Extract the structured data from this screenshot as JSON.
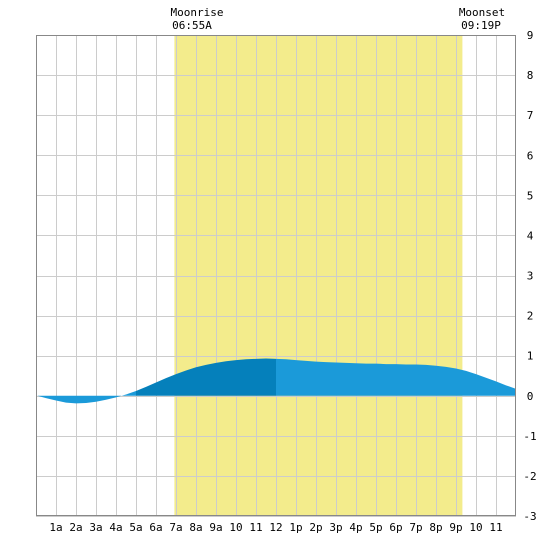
{
  "chart_data": {
    "type": "area",
    "title": "",
    "xlabel": "",
    "ylabel": "",
    "x_tick_labels": [
      "1a",
      "2a",
      "3a",
      "4a",
      "5a",
      "6a",
      "7a",
      "8a",
      "9a",
      "10",
      "11",
      "12",
      "1p",
      "2p",
      "3p",
      "4p",
      "5p",
      "6p",
      "7p",
      "8p",
      "9p",
      "10",
      "11"
    ],
    "x_range_hours": [
      0,
      24
    ],
    "ylim": [
      -3,
      9
    ],
    "y_ticks": [
      -3,
      -2,
      -1,
      0,
      1,
      2,
      3,
      4,
      5,
      6,
      7,
      8,
      9
    ],
    "grid": true,
    "moonrise": {
      "label": "Moonrise",
      "time": "06:55A",
      "hour": 6.92
    },
    "moonset": {
      "label": "Moonset",
      "time": "09:19P",
      "hour": 21.32
    },
    "series": [
      {
        "x": [
          0,
          0.5,
          1,
          1.5,
          2,
          2.5,
          3,
          3.5,
          4,
          4.5,
          5,
          5.5,
          6,
          6.5,
          7,
          7.5,
          8,
          8.5,
          9,
          9.5,
          10,
          10.5,
          11,
          11.5,
          12,
          12.5,
          13,
          13.5,
          14,
          14.5,
          15,
          15.5,
          16,
          16.5,
          17,
          17.5,
          18,
          18.5,
          19,
          19.5,
          20,
          20.5,
          21,
          21.5,
          22,
          22.5,
          23,
          23.5,
          24
        ],
        "values": [
          0.01,
          -0.06,
          -0.12,
          -0.17,
          -0.19,
          -0.18,
          -0.15,
          -0.1,
          -0.04,
          0.03,
          0.12,
          0.22,
          0.33,
          0.44,
          0.54,
          0.63,
          0.71,
          0.77,
          0.82,
          0.86,
          0.89,
          0.91,
          0.92,
          0.93,
          0.92,
          0.91,
          0.89,
          0.87,
          0.85,
          0.84,
          0.83,
          0.82,
          0.81,
          0.8,
          0.8,
          0.79,
          0.79,
          0.78,
          0.78,
          0.77,
          0.75,
          0.72,
          0.68,
          0.62,
          0.54,
          0.45,
          0.36,
          0.26,
          0.17
        ]
      }
    ],
    "colors": {
      "moon_band": "#f3ec8c",
      "fill_light": "#1b9ad9",
      "fill_dark": "#0580bb",
      "grid": "#cccccc",
      "axis": "#888888"
    }
  }
}
